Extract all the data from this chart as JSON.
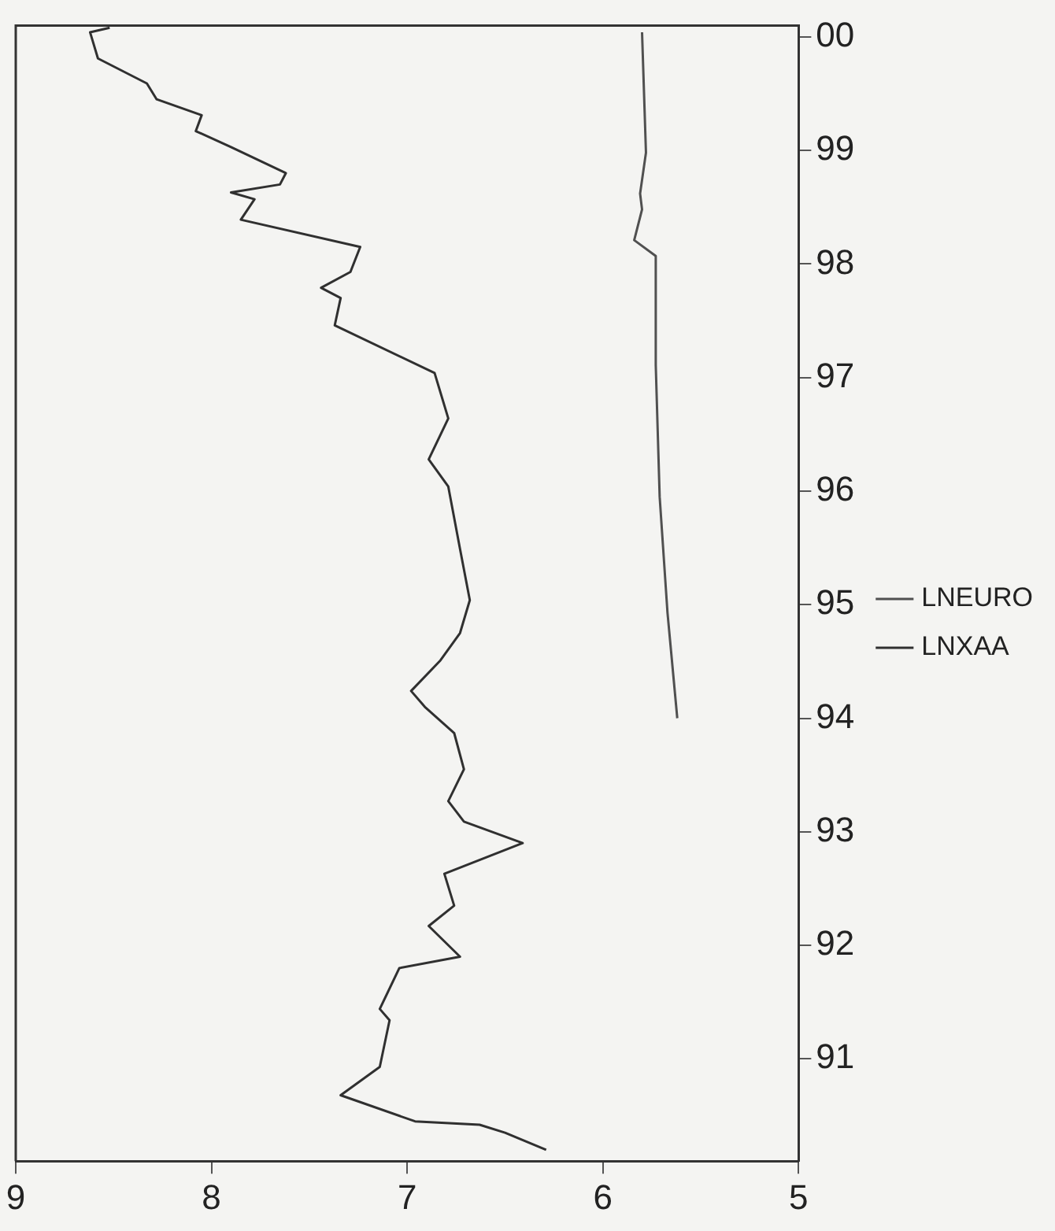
{
  "chart_data": {
    "type": "line",
    "xlim": [
      9,
      5
    ],
    "ylim": [
      1990.1,
      2000.1
    ],
    "xticks": [
      9,
      8,
      7,
      6,
      5
    ],
    "yticks": [
      {
        "value": 1991,
        "label": "91"
      },
      {
        "value": 1992,
        "label": "92"
      },
      {
        "value": 1993,
        "label": "93"
      },
      {
        "value": 1994,
        "label": "94"
      },
      {
        "value": 1995,
        "label": "95"
      },
      {
        "value": 1996,
        "label": "96"
      },
      {
        "value": 1997,
        "label": "97"
      },
      {
        "value": 1998,
        "label": "98"
      },
      {
        "value": 1999,
        "label": "99"
      },
      {
        "value": 2000,
        "label": "00"
      }
    ],
    "grid": false,
    "legend": "right",
    "marker": "none",
    "line_style": "solid",
    "series": [
      {
        "name": "LNEURO",
        "color": "#505050",
        "values": [
          1994.0,
          1994.93,
          1995.95,
          1997.11,
          1998.07,
          1998.21,
          1998.48,
          1998.62,
          1998.98,
          2000.04
        ],
        "x": [
          5.62,
          5.67,
          5.71,
          5.73,
          5.73,
          5.84,
          5.8,
          5.81,
          5.78,
          5.8
        ]
      },
      {
        "name": "LNXAA",
        "color": "#303030",
        "values": [
          1990.2,
          1990.35,
          1990.42,
          1990.45,
          1990.68,
          1990.93,
          1991.34,
          1991.44,
          1991.8,
          1991.9,
          1992.17,
          1992.35,
          1992.63,
          1992.9,
          1993.09,
          1993.27,
          1993.55,
          1993.87,
          1994.1,
          1994.24,
          1994.51,
          1994.75,
          1995.04,
          1995.49,
          1996.04,
          1996.28,
          1996.64,
          1997.04,
          1997.46,
          1997.7,
          1997.79,
          1997.93,
          1998.15,
          1998.39,
          1998.57,
          1998.63,
          1998.7,
          1998.8,
          1999.03,
          1999.17,
          1999.31,
          1999.45,
          1999.59,
          1999.81,
          2000.04,
          2000.08
        ],
        "x": [
          6.29,
          6.5,
          6.63,
          6.96,
          7.34,
          7.14,
          7.09,
          7.14,
          7.04,
          6.73,
          6.89,
          6.76,
          6.81,
          6.41,
          6.71,
          6.79,
          6.71,
          6.76,
          6.91,
          6.98,
          6.83,
          6.73,
          6.68,
          6.73,
          6.79,
          6.89,
          6.79,
          6.86,
          7.37,
          7.34,
          7.44,
          7.29,
          7.24,
          7.85,
          7.78,
          7.9,
          7.65,
          7.62,
          7.9,
          8.08,
          8.05,
          8.28,
          8.33,
          8.58,
          8.62,
          8.52
        ]
      }
    ]
  }
}
